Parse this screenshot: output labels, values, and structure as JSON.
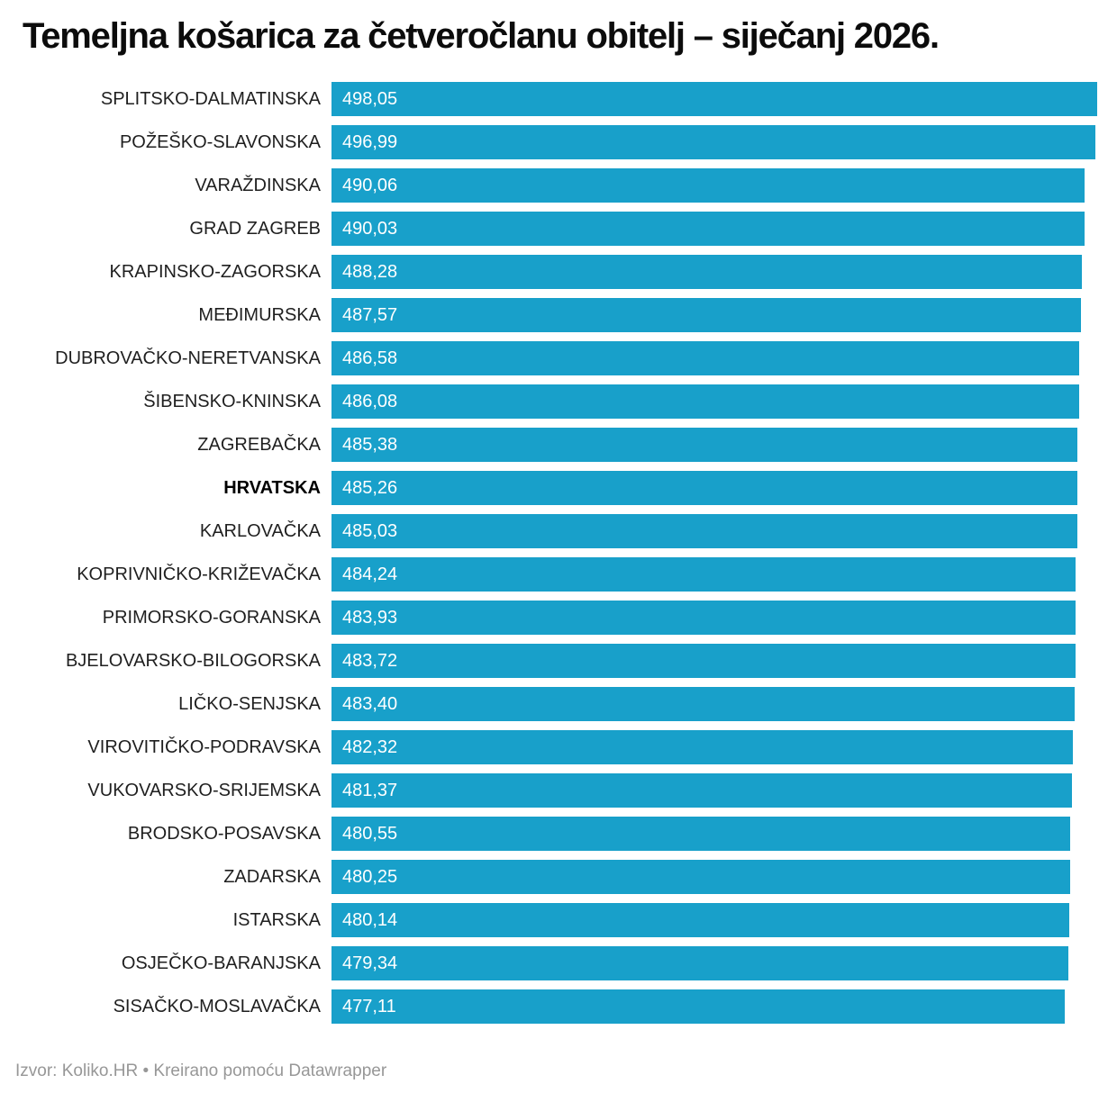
{
  "title": "Temeljna košarica za četveročlanu obitelj – siječanj 2026.",
  "footer": "Izvor: Koliko.HR • Kreirano pomoću Datawrapper",
  "colors": {
    "bar": "#18a0ca",
    "title": "#0c0c0c",
    "label": "#1f1f1f",
    "value_text": "#ffffff",
    "source_text": "#979797",
    "background": "#ffffff"
  },
  "chart_data": {
    "type": "bar",
    "orientation": "horizontal",
    "title": "Temeljna košarica za četveročlanu obitelj – siječanj 2026.",
    "xlabel": "",
    "ylabel": "",
    "xlim": [
      0,
      498.05
    ],
    "grid": false,
    "legend": false,
    "axis_ticks_visible": false,
    "value_labels_position": "inside-start",
    "highlight_category": "HRVATSKA",
    "source": "Izvor: Koliko.HR",
    "made_with": "Kreirano pomoću Datawrapper",
    "categories": [
      "SPLITSKO-DALMATINSKA",
      "POŽEŠKO-SLAVONSKA",
      "VARAŽDINSKA",
      "GRAD ZAGREB",
      "KRAPINSKO-ZAGORSKA",
      "MEĐIMURSKA",
      "DUBROVAČKO-NERETVANSKA",
      "ŠIBENSKO-KNINSKA",
      "ZAGREBAČKA",
      "HRVATSKA",
      "KARLOVAČKA",
      "KOPRIVNIČKO-KRIŽEVAČKA",
      "PRIMORSKO-GORANSKA",
      "BJELOVARSKO-BILOGORSKA",
      "LIČKO-SENJSKA",
      "VIROVITIČKO-PODRAVSKA",
      "VUKOVARSKO-SRIJEMSKA",
      "BRODSKO-POSAVSKA",
      "ZADARSKA",
      "ISTARSKA",
      "OSJEČKO-BARANJSKA",
      "SISAČKO-MOSLAVAČKA"
    ],
    "values": [
      498.05,
      496.99,
      490.06,
      490.03,
      488.28,
      487.57,
      486.58,
      486.08,
      485.38,
      485.26,
      485.03,
      484.24,
      483.93,
      483.72,
      483.4,
      482.32,
      481.37,
      480.55,
      480.25,
      480.14,
      479.34,
      477.11
    ],
    "value_labels": [
      "498,05",
      "496,99",
      "490,06",
      "490,03",
      "488,28",
      "487,57",
      "486,58",
      "486,08",
      "485,38",
      "485,26",
      "485,03",
      "484,24",
      "483,93",
      "483,72",
      "483,40",
      "482,32",
      "481,37",
      "480,55",
      "480,25",
      "480,14",
      "479,34",
      "477,11"
    ]
  }
}
